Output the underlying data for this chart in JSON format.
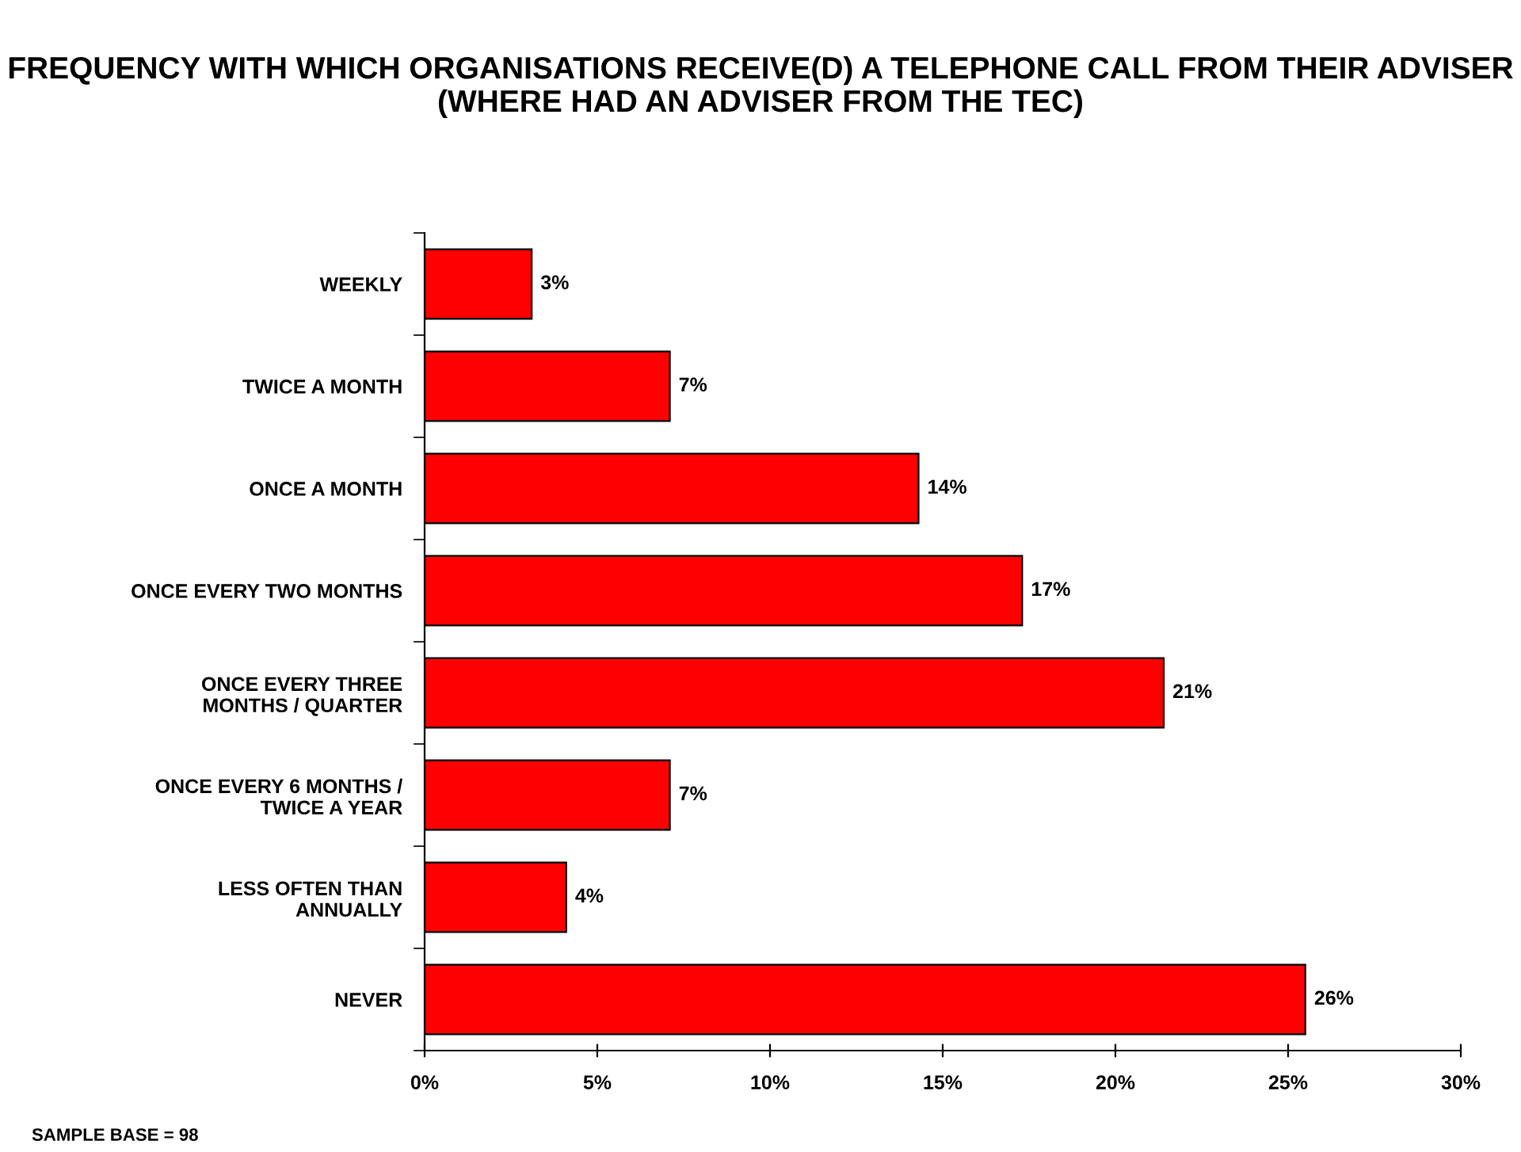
{
  "chart_data": {
    "type": "bar",
    "orientation": "horizontal",
    "title": "FREQUENCY WITH WHICH ORGANISATIONS RECEIVE(D) A TELEPHONE CALL FROM THEIR ADVISER\n(WHERE HAD AN ADVISER FROM THE TEC)",
    "categories": [
      "WEEKLY",
      "TWICE A MONTH",
      "ONCE A MONTH",
      "ONCE EVERY TWO MONTHS",
      "ONCE EVERY THREE\nMONTHS / QUARTER",
      "ONCE EVERY 6 MONTHS /\nTWICE A YEAR",
      "LESS OFTEN THAN\nANNUALLY",
      "NEVER"
    ],
    "values": [
      3.1,
      7.1,
      14.3,
      17.3,
      21.4,
      7.1,
      4.1,
      25.5
    ],
    "value_labels": [
      "3%",
      "7%",
      "14%",
      "17%",
      "21%",
      "7%",
      "4%",
      "26%"
    ],
    "color": "#ff0000",
    "xlim": [
      0,
      30
    ],
    "xticks": [
      {
        "value": 0,
        "label": "0%"
      },
      {
        "value": 5,
        "label": "5%"
      },
      {
        "value": 10,
        "label": "10%"
      },
      {
        "value": 15,
        "label": "15%"
      },
      {
        "value": 20,
        "label": "20%"
      },
      {
        "value": 25,
        "label": "25%"
      },
      {
        "value": 30,
        "label": "30%"
      }
    ],
    "grid": false,
    "legend": false,
    "annotations": [
      "SAMPLE BASE = 98"
    ]
  }
}
